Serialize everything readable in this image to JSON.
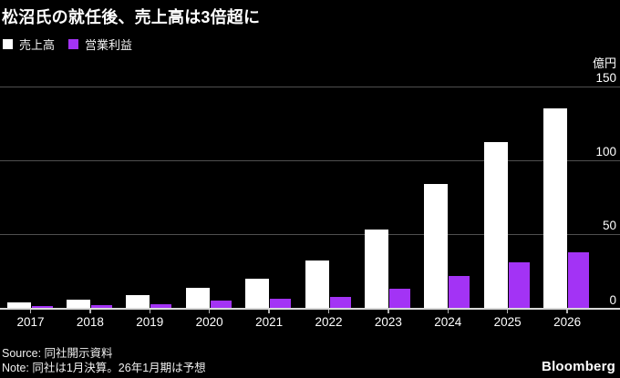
{
  "title": "松沼氏の就任後、売上高は3倍超に",
  "legend": [
    {
      "label": "売上高",
      "color": "#ffffff"
    },
    {
      "label": "営業利益",
      "color": "#a333f5"
    }
  ],
  "chart_data": {
    "type": "bar",
    "categories": [
      "2017",
      "2018",
      "2019",
      "2020",
      "2021",
      "2022",
      "2023",
      "2024",
      "2025",
      "2026"
    ],
    "series": [
      {
        "name": "売上高",
        "color": "#ffffff",
        "values": [
          4,
          6,
          9,
          14,
          20,
          32,
          53,
          84,
          112,
          135
        ]
      },
      {
        "name": "営業利益",
        "color": "#a333f5",
        "values": [
          1.5,
          2,
          3,
          5,
          6.5,
          7.5,
          13,
          22,
          31,
          38
        ]
      }
    ],
    "unit_label": "億円",
    "yticks": [
      0,
      50,
      100,
      150
    ],
    "ylim": [
      0,
      150
    ],
    "grid": true,
    "legend_position": "top-left",
    "background": "#000000"
  },
  "footer": {
    "source": "Source: 同社開示資料",
    "note": "Note: 同社は1月決算。26年1月期は予想",
    "brand": "Bloomberg"
  }
}
